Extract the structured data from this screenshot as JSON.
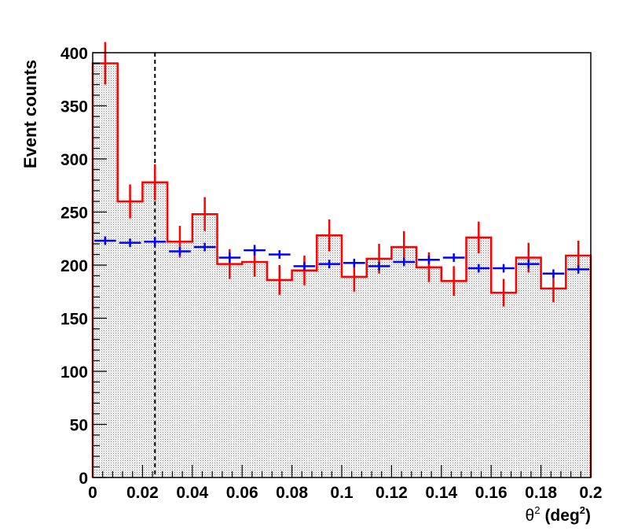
{
  "chart_data": {
    "type": "histogram",
    "title": "",
    "xlabel": "θ",
    "xlabel_sup": "2",
    "xlabel_unit_open": "(deg",
    "xlabel_unit_sup": "2",
    "xlabel_unit_close": ")",
    "ylabel": "Event counts",
    "xlim": [
      0,
      0.2
    ],
    "ylim": [
      0,
      400
    ],
    "x_ticks": [
      "0",
      "0.02",
      "0.04",
      "0.06",
      "0.08",
      "0.1",
      "0.12",
      "0.14",
      "0.16",
      "0.18",
      "0.2"
    ],
    "y_ticks": [
      "0",
      "50",
      "100",
      "150",
      "200",
      "250",
      "300",
      "350",
      "400"
    ],
    "grid": false,
    "legend": "none",
    "cut_line_x": 0.025,
    "bin_width": 0.01,
    "bin_centers": [
      0.005,
      0.015,
      0.025,
      0.035,
      0.045,
      0.055,
      0.065,
      0.075,
      0.085,
      0.095,
      0.105,
      0.115,
      0.125,
      0.135,
      0.145,
      0.155,
      0.165,
      0.175,
      0.185,
      0.195
    ],
    "series": [
      {
        "style": "filled-step-histogram",
        "color": "#ff0000",
        "values": [
          390,
          260,
          278,
          222,
          248,
          201,
          203,
          186,
          195,
          228,
          189,
          206,
          217,
          198,
          185,
          226,
          174,
          207,
          178,
          209
        ],
        "errors": [
          20,
          16,
          17,
          15,
          16,
          14,
          14,
          14,
          14,
          15,
          14,
          14,
          15,
          14,
          14,
          15,
          13,
          14,
          13,
          14
        ]
      },
      {
        "style": "points-with-error-bars",
        "color": "#0000ff",
        "values": [
          223,
          221,
          222,
          213,
          217,
          207,
          214,
          210,
          199,
          201,
          202,
          199,
          203,
          205,
          207,
          197,
          197,
          201,
          192,
          196
        ],
        "errors": [
          4,
          4,
          4,
          4,
          4,
          5,
          5,
          4,
          4,
          4,
          4,
          4,
          4,
          4,
          4,
          4,
          4,
          4,
          4,
          4
        ]
      }
    ]
  }
}
